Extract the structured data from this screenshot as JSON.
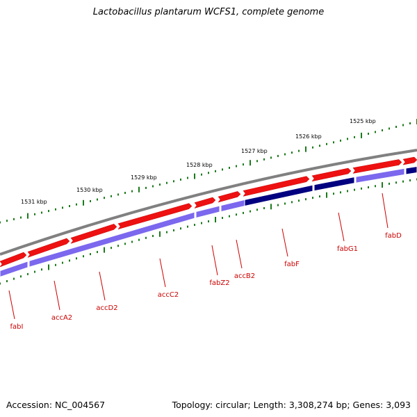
{
  "title": "Lactobacillus plantarum WCFS1, complete genome",
  "accession": "Accession: NC_004567",
  "summary": "Topology: circular; Length: 3,308,274 bp; Genes: 3,093",
  "ruler_labels": [
    "1525 kbp",
    "1526 kbp",
    "1527 kbp",
    "1528 kbp",
    "1529 kbp",
    "1530 kbp",
    "1531 kbp"
  ],
  "genes": [
    "fabD",
    "fabG1",
    "fabF",
    "accB2",
    "fabZ2",
    "accC2",
    "accD2",
    "accA2",
    "fabI"
  ],
  "colors": {
    "backbone": "#808080",
    "forward_feature": "#ee1111",
    "cds": "#7b68ee",
    "cds_highlight": "#000080",
    "ruler_ticks": "#1a7a1a",
    "gene_label": "#cc0000"
  }
}
